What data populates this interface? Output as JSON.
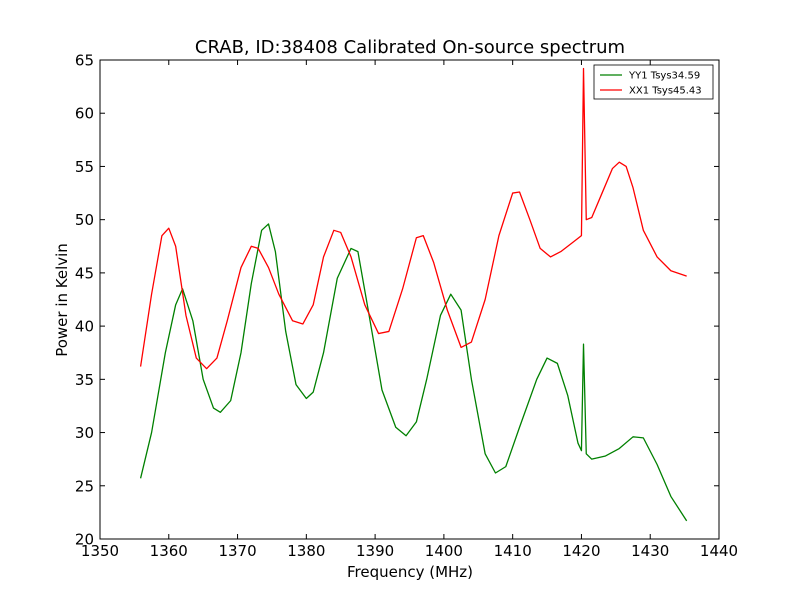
{
  "chart_data": {
    "type": "line",
    "title": "CRAB, ID:38408 Calibrated On-source spectrum",
    "xlabel": "Frequency (MHz)",
    "ylabel": "Power in Kelvin",
    "xlim": [
      1350,
      1440
    ],
    "ylim": [
      20,
      65
    ],
    "xticks": [
      1350,
      1360,
      1370,
      1380,
      1390,
      1400,
      1410,
      1420,
      1430,
      1440
    ],
    "yticks": [
      20,
      25,
      30,
      35,
      40,
      45,
      50,
      55,
      60,
      65
    ],
    "grid": false,
    "legend_position": "top-right",
    "series": [
      {
        "name": "YY1 Tsys34.59",
        "color": "#008000",
        "x": [
          1355.9,
          1357.5,
          1359.5,
          1361.0,
          1362.0,
          1363.5,
          1365.0,
          1366.5,
          1367.5,
          1369.0,
          1370.5,
          1372.0,
          1373.5,
          1374.5,
          1375.5,
          1377.0,
          1378.5,
          1380.0,
          1381.0,
          1382.5,
          1384.5,
          1386.5,
          1387.5,
          1389.0,
          1391.0,
          1393.0,
          1394.5,
          1396.0,
          1397.5,
          1399.5,
          1401.0,
          1402.5,
          1404.0,
          1406.0,
          1407.5,
          1409.0,
          1411.0,
          1413.5,
          1415.0,
          1416.5,
          1418.0,
          1419.5,
          1420.0,
          1420.3,
          1420.7,
          1421.5,
          1423.5,
          1425.5,
          1427.5,
          1429.0,
          1431.0,
          1433.0,
          1435.3
        ],
        "y": [
          25.7,
          30.0,
          37.5,
          42.0,
          43.5,
          40.5,
          35.0,
          32.3,
          31.9,
          33.0,
          37.5,
          44.0,
          49.0,
          49.6,
          47.0,
          39.5,
          34.5,
          33.2,
          33.8,
          37.5,
          44.5,
          47.3,
          47.0,
          41.5,
          34.0,
          30.5,
          29.7,
          31.0,
          35.0,
          41.0,
          43.0,
          41.5,
          35.0,
          28.0,
          26.2,
          26.8,
          30.5,
          35.0,
          37.0,
          36.5,
          33.5,
          29.0,
          28.3,
          38.3,
          28.0,
          27.5,
          27.8,
          28.5,
          29.6,
          29.5,
          27.0,
          24.0,
          21.7
        ]
      },
      {
        "name": "XX1 Tsys45.43",
        "color": "#ff0000",
        "x": [
          1355.9,
          1357.5,
          1359.0,
          1360.0,
          1361.0,
          1362.5,
          1364.0,
          1365.5,
          1367.0,
          1368.5,
          1370.5,
          1372.0,
          1373.0,
          1374.5,
          1376.0,
          1378.0,
          1379.5,
          1381.0,
          1382.5,
          1384.0,
          1385.0,
          1386.5,
          1388.5,
          1390.5,
          1392.0,
          1394.0,
          1396.0,
          1397.0,
          1398.5,
          1400.5,
          1402.5,
          1404.0,
          1406.0,
          1408.0,
          1410.0,
          1411.0,
          1412.5,
          1414.0,
          1415.5,
          1417.0,
          1419.0,
          1420.0,
          1420.3,
          1420.7,
          1421.5,
          1423.0,
          1424.5,
          1425.5,
          1426.5,
          1427.5,
          1429.0,
          1431.0,
          1433.0,
          1435.3
        ],
        "y": [
          36.2,
          43.0,
          48.5,
          49.2,
          47.5,
          41.0,
          37.0,
          36.0,
          37.0,
          40.5,
          45.5,
          47.5,
          47.3,
          45.5,
          43.0,
          40.5,
          40.2,
          42.0,
          46.5,
          49.0,
          48.8,
          46.5,
          42.0,
          39.3,
          39.5,
          43.5,
          48.3,
          48.5,
          46.0,
          41.5,
          38.0,
          38.5,
          42.5,
          48.5,
          52.5,
          52.6,
          50.0,
          47.3,
          46.5,
          47.0,
          48.0,
          48.5,
          64.2,
          50.0,
          50.2,
          52.5,
          54.8,
          55.4,
          55.0,
          53.0,
          49.0,
          46.5,
          45.2,
          44.7
        ]
      }
    ]
  }
}
